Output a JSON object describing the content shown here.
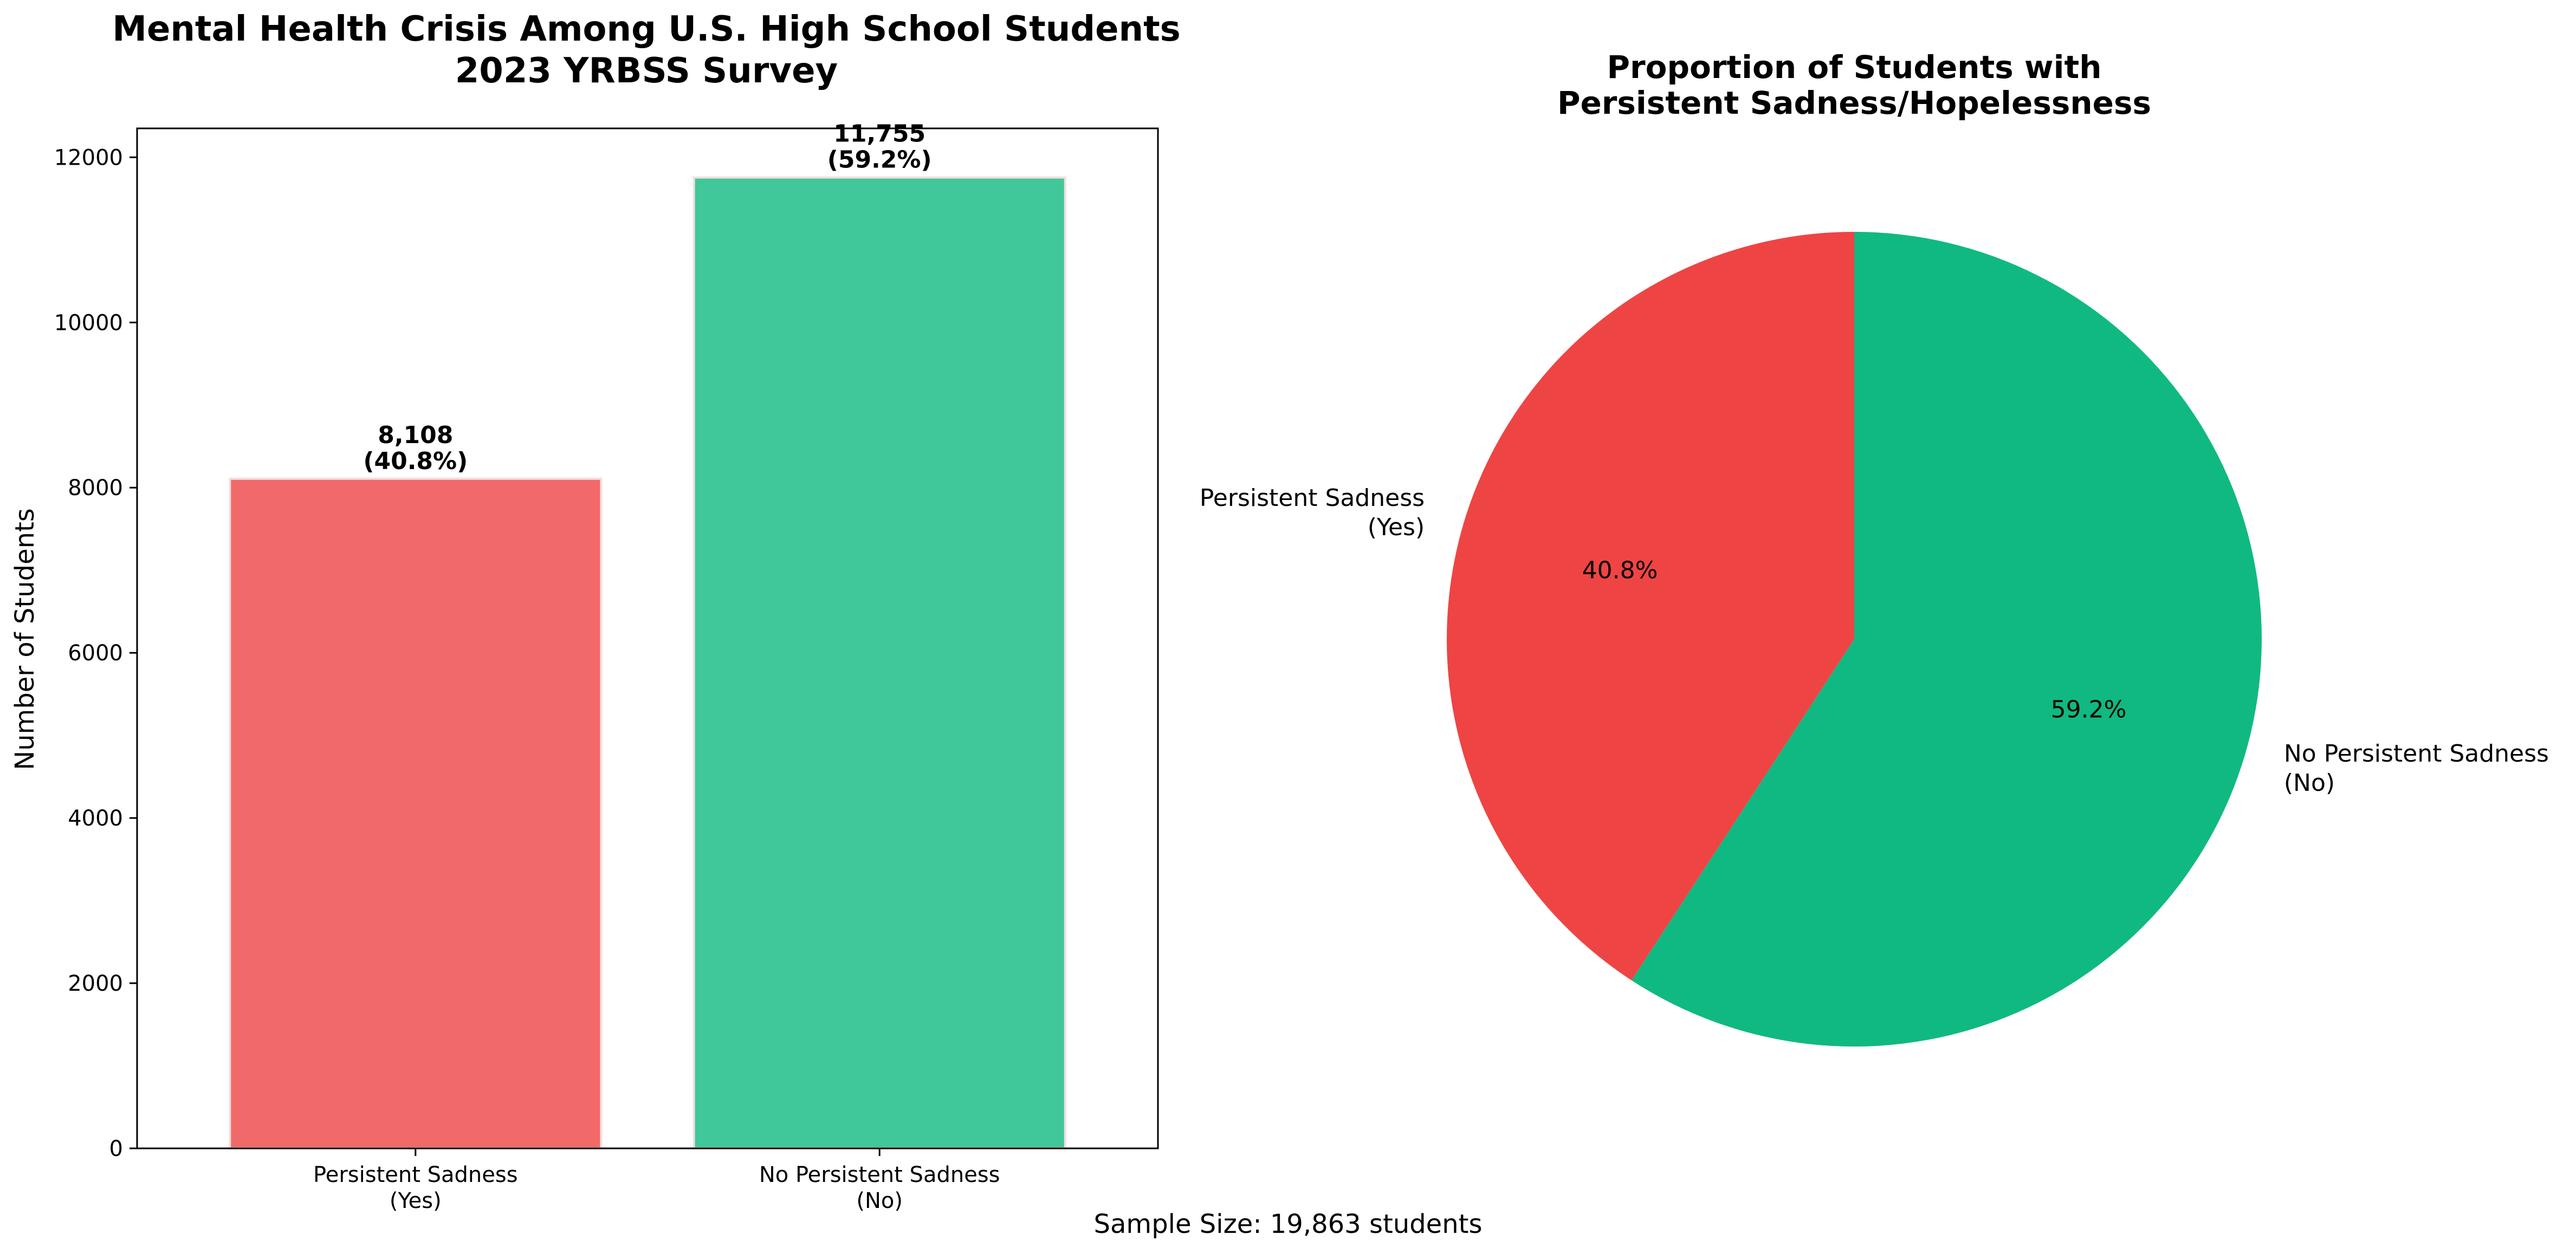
{
  "chart_data": [
    {
      "type": "bar",
      "title": "Mental Health Crisis Among U.S. High School Students",
      "subtitle": "2023 YRBSS Survey",
      "xlabel": "",
      "ylabel": "Number of Students",
      "categories": [
        {
          "line1": "Persistent Sadness",
          "line2": "(Yes)"
        },
        {
          "line1": "No Persistent Sadness",
          "line2": "(No)"
        }
      ],
      "values": [
        8108,
        11755
      ],
      "bar_labels": [
        {
          "count": "8,108",
          "pct": "(40.8%)"
        },
        {
          "count": "11,755",
          "pct": "(59.2%)"
        }
      ],
      "colors": [
        "#ef4444",
        "#10b981"
      ],
      "ylim": [
        0,
        12350
      ],
      "yticks": [
        0,
        2000,
        4000,
        6000,
        8000,
        10000,
        12000
      ],
      "grid": false
    },
    {
      "type": "pie",
      "title_line1": "Proportion of Students with",
      "title_line2": "Persistent Sadness/Hopelessness",
      "slices": [
        {
          "label_line1": "Persistent Sadness",
          "label_line2": "(Yes)",
          "value": 40.8,
          "pct_label": "40.8%",
          "color": "#ef4444"
        },
        {
          "label_line1": "No Persistent Sadness",
          "label_line2": "(No)",
          "value": 59.2,
          "pct_label": "59.2%",
          "color": "#10b981"
        }
      ],
      "start_angle": "top",
      "direction": "counterclockwise"
    }
  ],
  "footer": "Sample Size: 19,863 students"
}
